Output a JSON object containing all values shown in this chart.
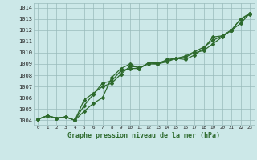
{
  "title": "Graphe pression niveau de la mer (hPa)",
  "bg_color": "#cce8e8",
  "grid_color": "#99bbbb",
  "line_color": "#2d6a2d",
  "x_ticks": [
    0,
    1,
    2,
    3,
    4,
    5,
    6,
    7,
    8,
    9,
    10,
    11,
    12,
    13,
    14,
    15,
    16,
    17,
    18,
    19,
    20,
    21,
    22,
    23
  ],
  "y_ticks": [
    1004,
    1005,
    1006,
    1007,
    1008,
    1009,
    1010,
    1011,
    1012,
    1013,
    1014
  ],
  "ylim": [
    1003.6,
    1014.4
  ],
  "xlim": [
    -0.5,
    23.5
  ],
  "series": [
    [
      1004.1,
      1004.4,
      1004.2,
      1004.3,
      1004.0,
      1004.8,
      1005.5,
      1006.0,
      1007.8,
      1008.6,
      1009.0,
      1008.6,
      1009.1,
      1009.0,
      1009.4,
      1009.5,
      1009.4,
      1009.8,
      1010.4,
      1011.4,
      1011.5,
      1012.0,
      1012.6,
      1013.5
    ],
    [
      1004.1,
      1004.4,
      1004.2,
      1004.3,
      1004.0,
      1005.3,
      1006.3,
      1007.3,
      1007.5,
      1008.4,
      1008.6,
      1008.6,
      1009.1,
      1009.1,
      1009.3,
      1009.5,
      1009.7,
      1010.1,
      1010.5,
      1011.1,
      1011.5,
      1012.0,
      1013.0,
      1013.5
    ],
    [
      1004.1,
      1004.4,
      1004.2,
      1004.3,
      1004.0,
      1005.8,
      1006.4,
      1007.0,
      1007.3,
      1008.1,
      1008.8,
      1008.7,
      1009.0,
      1009.0,
      1009.2,
      1009.5,
      1009.6,
      1010.0,
      1010.2,
      1010.8,
      1011.4,
      1012.0,
      1013.0,
      1013.4
    ]
  ]
}
